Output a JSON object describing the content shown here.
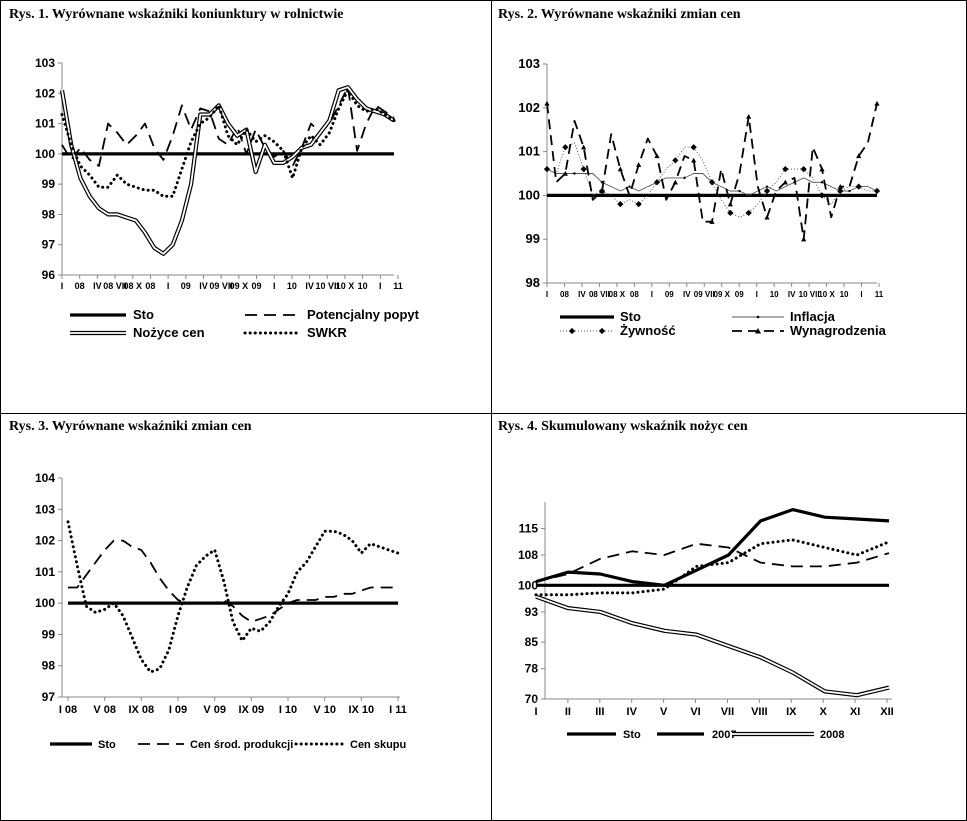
{
  "chart_data": [
    {
      "type": "line",
      "title": "Rys. 1. Wyrównane wskaźniki koniunktury w rolnictwie",
      "x_tick_labels": [
        "I",
        "08",
        "IV",
        "08 VII",
        "08 X",
        "08",
        "I",
        "09",
        "IV",
        "09 VII",
        "09 X",
        "09",
        "I",
        "10",
        "IV",
        "10 VII",
        "10 X",
        "10",
        "I",
        "11"
      ],
      "y_ticks": [
        96,
        97,
        98,
        99,
        100,
        101,
        102,
        103
      ],
      "ylim": [
        96,
        103
      ],
      "n_points": 37,
      "series": [
        {
          "name": "Sto",
          "style": "thick",
          "values": [
            100,
            100,
            100,
            100,
            100,
            100,
            100,
            100,
            100,
            100,
            100,
            100,
            100,
            100,
            100,
            100,
            100,
            100,
            100,
            100,
            100,
            100,
            100,
            100,
            100,
            100,
            100,
            100,
            100,
            100,
            100,
            100,
            100,
            100,
            100,
            100,
            100
          ]
        },
        {
          "name": "Potencjalny popyt",
          "style": "dash",
          "values": [
            100.3,
            99.8,
            100.2,
            99.8,
            99.6,
            101.0,
            100.7,
            100.3,
            100.6,
            101.0,
            100.2,
            99.8,
            100.6,
            101.6,
            100.8,
            101.5,
            101.4,
            100.5,
            100.3,
            100.9,
            100.0,
            100.8,
            100.2,
            99.9,
            100.1,
            99.6,
            100.2,
            101.0,
            100.7,
            101.0,
            101.6,
            102.2,
            100.1,
            101.0,
            101.6,
            101.4,
            101.2
          ]
        },
        {
          "name": "Nożyce cen",
          "style": "double",
          "values": [
            102.1,
            100.3,
            99.2,
            98.6,
            98.2,
            98.0,
            98.0,
            97.9,
            97.8,
            97.4,
            96.9,
            96.7,
            97.0,
            97.8,
            99.0,
            101.3,
            101.3,
            101.6,
            101.0,
            100.6,
            100.8,
            99.4,
            100.3,
            99.7,
            99.7,
            99.9,
            100.2,
            100.3,
            100.7,
            101.1,
            102.1,
            102.2,
            101.8,
            101.5,
            101.4,
            101.3,
            101.1
          ]
        },
        {
          "name": "SWKR",
          "style": "dot",
          "values": [
            101.3,
            100.3,
            99.6,
            99.3,
            98.9,
            98.9,
            99.3,
            99.0,
            98.9,
            98.8,
            98.8,
            98.6,
            98.6,
            99.5,
            100.4,
            101.0,
            101.2,
            101.6,
            100.6,
            100.3,
            100.8,
            100.4,
            100.6,
            100.4,
            100.1,
            99.2,
            100.2,
            100.6,
            100.3,
            100.7,
            101.5,
            102.1,
            101.6,
            101.4,
            101.5,
            101.3,
            101.1
          ]
        }
      ],
      "legend": [
        "Sto",
        "Potencjalny popyt",
        "Nożyce cen",
        "SWKR"
      ]
    },
    {
      "type": "line",
      "title": "Rys. 2. Wyrównane wskaźniki zmian cen",
      "x_tick_labels": [
        "I",
        "08",
        "IV",
        "08 VII",
        "08 X",
        "08",
        "I",
        "09",
        "IV",
        "09 VII",
        "09 X",
        "09",
        "I",
        "10",
        "IV",
        "10 VII",
        "10 X",
        "10",
        "I",
        "11"
      ],
      "y_ticks": [
        98,
        99,
        100,
        101,
        102,
        103
      ],
      "ylim": [
        98,
        103
      ],
      "n_points": 37,
      "series": [
        {
          "name": "Sto",
          "style": "thick",
          "values": [
            100,
            100,
            100,
            100,
            100,
            100,
            100,
            100,
            100,
            100,
            100,
            100,
            100,
            100,
            100,
            100,
            100,
            100,
            100,
            100,
            100,
            100,
            100,
            100,
            100,
            100,
            100,
            100,
            100,
            100,
            100,
            100,
            100,
            100,
            100,
            100,
            100
          ]
        },
        {
          "name": "Inflacja",
          "style": "thin-marker",
          "values": [
            100.6,
            100.5,
            100.5,
            100.5,
            100.5,
            100.5,
            100.3,
            100.2,
            100.1,
            100.2,
            100.1,
            100.2,
            100.3,
            100.4,
            100.4,
            100.4,
            100.5,
            100.5,
            100.3,
            100.2,
            100.1,
            100.1,
            100.0,
            100.1,
            100.2,
            100.1,
            100.2,
            100.3,
            100.4,
            100.3,
            100.3,
            100.2,
            100.1,
            100.1,
            100.2,
            100.2,
            100.1
          ]
        },
        {
          "name": "Żywność",
          "style": "dot-diamond",
          "values": [
            100.6,
            100.5,
            101.1,
            101.2,
            100.6,
            100.0,
            100.1,
            100.0,
            99.8,
            99.9,
            99.8,
            100.0,
            100.3,
            100.6,
            100.8,
            101.1,
            101.1,
            100.8,
            100.3,
            99.9,
            99.6,
            99.5,
            99.6,
            99.8,
            100.1,
            100.3,
            100.6,
            100.6,
            100.6,
            100.4,
            100.0,
            99.8,
            100.1,
            100.2,
            100.2,
            100.1,
            100.1
          ]
        },
        {
          "name": "Wynagrodzenia",
          "style": "dash-triangle",
          "values": [
            102.1,
            100.3,
            100.5,
            101.7,
            101.1,
            99.9,
            100.1,
            101.4,
            100.6,
            100.0,
            100.7,
            101.3,
            100.9,
            99.9,
            100.3,
            100.9,
            100.8,
            99.4,
            99.4,
            100.6,
            99.8,
            100.5,
            101.8,
            100.2,
            99.5,
            100.1,
            100.3,
            100.4,
            99.0,
            101.1,
            100.6,
            99.5,
            100.2,
            100.2,
            100.9,
            101.2,
            102.1
          ]
        }
      ],
      "legend": [
        "Sto",
        "Inflacja",
        "Żywność",
        "Wynagrodzenia"
      ]
    },
    {
      "type": "line",
      "title": "Rys. 3. Wyrównane wskaźniki zmian cen",
      "x_tick_labels": [
        "I 08",
        "V 08",
        "IX 08",
        "I 09",
        "V 09",
        "IX 09",
        "I 10",
        "V 10",
        "IX 10",
        "I 11"
      ],
      "y_ticks": [
        97,
        98,
        99,
        100,
        101,
        102,
        103,
        104
      ],
      "ylim": [
        97,
        104
      ],
      "n_points": 37,
      "series": [
        {
          "name": "Sto",
          "style": "thick",
          "values": [
            100,
            100,
            100,
            100,
            100,
            100,
            100,
            100,
            100,
            100,
            100,
            100,
            100,
            100,
            100,
            100,
            100,
            100,
            100,
            100,
            100,
            100,
            100,
            100,
            100,
            100,
            100,
            100,
            100,
            100,
            100,
            100,
            100,
            100,
            100,
            100,
            100
          ]
        },
        {
          "name": "Cen środ. produkcji",
          "style": "dash",
          "values": [
            100.5,
            100.5,
            100.9,
            101.3,
            101.7,
            102.0,
            102.0,
            101.8,
            101.7,
            101.3,
            100.8,
            100.4,
            100.1,
            100.0,
            100.0,
            100.0,
            100.0,
            100.1,
            99.9,
            99.6,
            99.4,
            99.5,
            99.6,
            99.8,
            100.0,
            100.1,
            100.1,
            100.1,
            100.2,
            100.2,
            100.3,
            100.3,
            100.4,
            100.5,
            100.5,
            100.5,
            100.5
          ]
        },
        {
          "name": "Cen skupu",
          "style": "dot",
          "values": [
            102.6,
            101.2,
            99.9,
            99.7,
            99.8,
            100.0,
            99.6,
            98.9,
            98.2,
            97.8,
            97.9,
            98.5,
            99.6,
            100.5,
            101.2,
            101.5,
            101.7,
            100.7,
            99.4,
            98.8,
            99.2,
            99.1,
            99.4,
            99.9,
            100.3,
            101.0,
            101.3,
            101.8,
            102.3,
            102.3,
            102.2,
            102.0,
            101.6,
            101.9,
            101.8,
            101.7,
            101.6
          ]
        }
      ],
      "legend": [
        "Sto",
        "Cen środ. produkcji",
        "Cen skupu"
      ]
    },
    {
      "type": "line",
      "title": "Rys. 4. Skumulowany wskaźnik nożyc cen",
      "x_tick_labels": [
        "I",
        "II",
        "III",
        "IV",
        "V",
        "VI",
        "VII",
        "VIII",
        "IX",
        "X",
        "XI",
        "XII"
      ],
      "y_tick_labels": [
        "70",
        "78",
        "85",
        "93",
        "100",
        "108",
        "115"
      ],
      "ylim": [
        70,
        122
      ],
      "series": [
        {
          "name": "Sto",
          "style": "thick",
          "values": [
            100,
            100,
            100,
            100,
            100,
            100,
            100,
            100,
            100,
            100,
            100,
            100
          ]
        },
        {
          "name": "2007",
          "style": "thick",
          "values": [
            101,
            103.5,
            103,
            101,
            100,
            104,
            108,
            117,
            120,
            118,
            117.5,
            117
          ]
        },
        {
          "name": "2008",
          "style": "double",
          "values": [
            97,
            94,
            93,
            90,
            88,
            87,
            84,
            81,
            77,
            72,
            71,
            73
          ]
        },
        {
          "name": "",
          "style": "dash",
          "values": [
            101,
            103,
            107,
            109,
            108,
            111,
            110,
            106,
            105,
            105,
            106,
            108.5
          ]
        },
        {
          "name": "",
          "style": "dot",
          "values": [
            97.5,
            97.5,
            98,
            98,
            99,
            105,
            106,
            111,
            112,
            110,
            108,
            111.5
          ]
        }
      ],
      "legend": [
        "Sto",
        "2007",
        "2008"
      ]
    }
  ]
}
